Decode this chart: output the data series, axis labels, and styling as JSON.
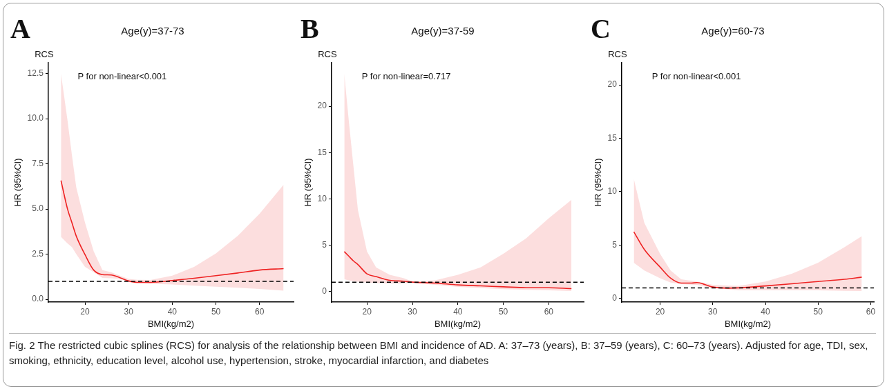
{
  "chart_data": [
    {
      "type": "line",
      "title": "Age(y)=37-73",
      "xlabel": "BMI(kg/m2)",
      "ylabel": "HR (95%CI)",
      "annotations": [
        "A",
        "RCS",
        "P for non-linear<0.001",
        "Fig. 2  The restricted cubic splines (RCS) for analysis of the relationship between BMI and incidence of AD. A: 37–73 (years), B: 37–59 (years), C: 60–73 (years). Adjusted for age, TDI, sex, smoking, ethnicity, education level, alcohol use, hypertension, stroke, myocardial infarction, and diabetes"
      ],
      "x": [
        14.5,
        16,
        17,
        18,
        20,
        22,
        24,
        26,
        28,
        30,
        32,
        35,
        40,
        45,
        50,
        55,
        60,
        65.5
      ],
      "series": [
        {
          "color": "#ee2222",
          "values": [
            6.58,
            5.0,
            4.25,
            3.5,
            2.48,
            1.62,
            1.37,
            1.35,
            1.2,
            1.02,
            0.94,
            0.94,
            1.04,
            1.17,
            1.31,
            1.46,
            1.62,
            1.7
          ],
          "upper": [
            12.5,
            9.9,
            8.0,
            6.2,
            4.25,
            2.66,
            1.62,
            1.5,
            1.31,
            1.13,
            1.08,
            1.07,
            1.31,
            1.8,
            2.54,
            3.52,
            4.74,
            6.34
          ],
          "lower": [
            3.46,
            3.1,
            2.9,
            2.5,
            1.8,
            1.5,
            1.19,
            1.17,
            1.13,
            1.0,
            0.9,
            0.86,
            0.82,
            0.76,
            0.7,
            0.64,
            0.58,
            0.48
          ]
        }
      ],
      "xlim": [
        11.6,
        67.8
      ],
      "xticks": [
        20,
        30,
        40,
        50,
        60
      ],
      "ylim": [
        -0.15,
        13.1
      ],
      "yticks": [
        {
          "value": 0,
          "label": "0.0"
        },
        2.5,
        {
          "value": 5,
          "label": "5.0"
        },
        7.5,
        {
          "value": 10,
          "label": "10.0"
        },
        12.5
      ],
      "ref_lines": [
        {
          "axis": "y",
          "value": 1,
          "color": "#000000",
          "line_style": "dashed"
        }
      ],
      "grid": false,
      "legend": false
    },
    {
      "type": "line",
      "title": "Age(y)=37-59",
      "xlabel": "BMI(kg/m2)",
      "ylabel": "HR (95%CI)",
      "annotations": [
        "B",
        "RCS",
        "P for non-linear=0.717"
      ],
      "x": [
        15,
        16,
        17,
        18,
        20,
        22,
        25,
        28,
        30,
        35,
        40,
        45,
        50,
        55,
        60,
        65
      ],
      "series": [
        {
          "color": "#ee2222",
          "values": [
            4.3,
            3.8,
            3.3,
            2.9,
            1.9,
            1.6,
            1.2,
            1.1,
            1.0,
            0.9,
            0.7,
            0.6,
            0.5,
            0.4,
            0.4,
            0.3
          ],
          "upper": [
            23.5,
            18.4,
            13.6,
            8.8,
            4.3,
            2.6,
            1.8,
            1.43,
            1.07,
            1.19,
            1.79,
            2.6,
            4.06,
            5.73,
            7.9,
            9.9
          ],
          "lower": [
            1.31,
            1.2,
            1.1,
            1.05,
            0.95,
            0.9,
            0.84,
            0.84,
            0.95,
            0.72,
            0.48,
            0.35,
            0.24,
            0.18,
            0.12,
            0.05
          ]
        }
      ],
      "xlim": [
        12.2,
        67.7
      ],
      "xticks": [
        20,
        30,
        40,
        50,
        60
      ],
      "ylim": [
        -1.15,
        24.7
      ],
      "yticks": [
        0,
        5,
        10,
        15,
        20
      ],
      "ref_lines": [
        {
          "axis": "y",
          "value": 1,
          "color": "#000000",
          "line_style": "dashed"
        }
      ],
      "grid": false,
      "legend": false
    },
    {
      "type": "line",
      "title": "Age(y)=60-73",
      "xlabel": "BMI(kg/m2)",
      "ylabel": "HR (95%CI)",
      "annotations": [
        "C",
        "RCS",
        "P for non-linear<0.001"
      ],
      "x": [
        15,
        17,
        20,
        22,
        24,
        26,
        27,
        30,
        33,
        35,
        40,
        45,
        50,
        55,
        58.3
      ],
      "series": [
        {
          "color": "#ee2222",
          "values": [
            6.25,
            4.59,
            2.94,
            1.9,
            1.45,
            1.45,
            1.49,
            1.08,
            0.97,
            1.0,
            1.18,
            1.38,
            1.59,
            1.8,
            2.0
          ],
          "upper": [
            11.2,
            7.07,
            4.18,
            2.63,
            1.8,
            1.65,
            1.59,
            1.28,
            1.2,
            1.18,
            1.59,
            2.32,
            3.35,
            4.8,
            5.83
          ],
          "lower": [
            3.35,
            2.63,
            1.9,
            1.49,
            1.35,
            1.3,
            1.28,
            0.97,
            0.85,
            0.77,
            0.77,
            0.77,
            0.77,
            0.72,
            0.7
          ]
        }
      ],
      "xlim": [
        12.7,
        60.6
      ],
      "xticks": [
        20,
        30,
        40,
        50,
        60
      ],
      "ylim": [
        -0.33,
        22.07
      ],
      "yticks": [
        0,
        5,
        10,
        15,
        20
      ],
      "ref_lines": [
        {
          "axis": "y",
          "value": 1,
          "color": "#000000",
          "line_style": "dashed"
        }
      ],
      "grid": false,
      "legend": false
    }
  ]
}
